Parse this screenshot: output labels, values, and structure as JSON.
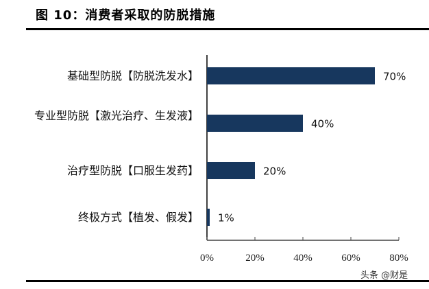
{
  "title": "图 10：消费者采取的防脱措施",
  "watermark": "头条 @财是",
  "chart_data": {
    "type": "bar",
    "orientation": "horizontal",
    "categories": [
      "基础型防脱【防脱洗发水】",
      "专业型防脱【激光治疗、生发液】",
      "治疗型防脱【口服生发药】",
      "终极方式【植发、假发】"
    ],
    "values": [
      70,
      40,
      20,
      1
    ],
    "data_labels": [
      "70%",
      "40%",
      "20%",
      "1%"
    ],
    "xlim": [
      0,
      80
    ],
    "xticks": [
      0,
      20,
      40,
      60,
      80
    ],
    "xtick_labels": [
      "0%",
      "20%",
      "40%",
      "60%",
      "80%"
    ],
    "grid": false,
    "bar_color": "#17375e"
  }
}
